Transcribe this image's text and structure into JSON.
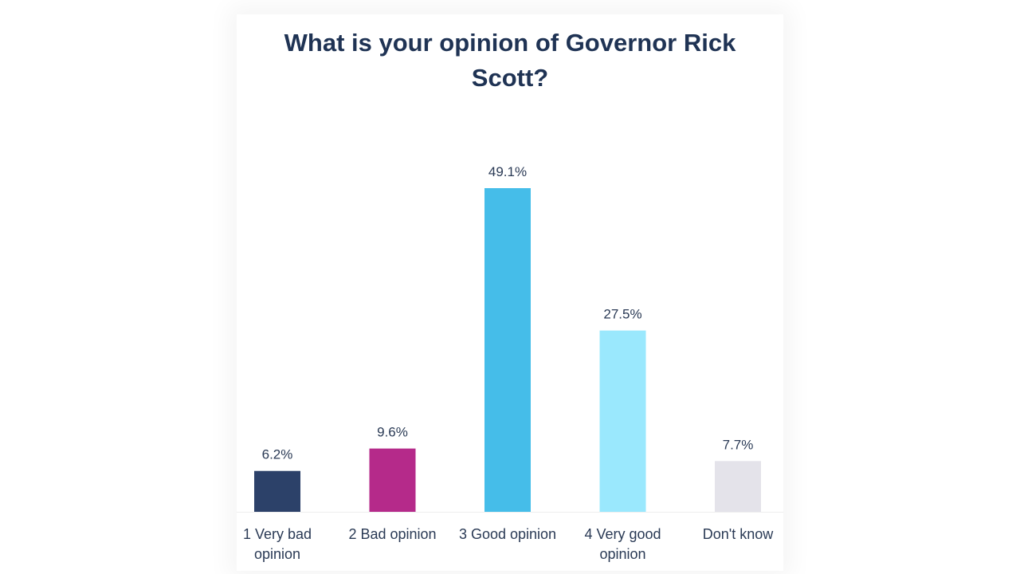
{
  "chart_data": {
    "type": "bar",
    "title_lines": [
      "What is your opinion of Governor Rick",
      "Scott?"
    ],
    "categories": [
      [
        "1 Very bad",
        "opinion"
      ],
      [
        "2 Bad opinion"
      ],
      [
        "3 Good opinion"
      ],
      [
        "4 Very good",
        "opinion"
      ],
      [
        "Don't know"
      ]
    ],
    "values": [
      6.2,
      9.6,
      49.1,
      27.5,
      7.7
    ],
    "value_labels": [
      "6.2%",
      "9.6%",
      "49.1%",
      "27.5%",
      "7.7%"
    ],
    "bar_colors": [
      "#2c4169",
      "#b52a8a",
      "#45bde9",
      "#9ae8fd",
      "#e4e3ea"
    ],
    "ylim": [
      0,
      49.1
    ],
    "grid": false,
    "legend": "none"
  }
}
